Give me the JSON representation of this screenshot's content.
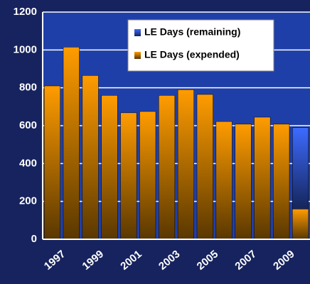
{
  "chart_data": {
    "type": "stacked_bar",
    "categories": [
      "1997",
      null,
      "1999",
      null,
      "2001",
      null,
      "2003",
      null,
      "2005",
      null,
      "2007",
      null,
      "2009",
      null
    ],
    "series": [
      {
        "name": "LE Days (expended)",
        "color": "#ff9c00",
        "values": [
          810,
          1015,
          865,
          760,
          668,
          675,
          760,
          790,
          765,
          622,
          608,
          645,
          608,
          160
        ]
      },
      {
        "name": "LE Days (remaining)",
        "color": "#3d6bff",
        "values": [
          null,
          null,
          null,
          null,
          null,
          null,
          null,
          null,
          null,
          null,
          null,
          null,
          null,
          430
        ]
      }
    ],
    "ylim": [
      0,
      1200
    ],
    "yticks": [
      0,
      200,
      400,
      600,
      800,
      1000,
      1200
    ],
    "grid": true,
    "legend": "upper right"
  }
}
